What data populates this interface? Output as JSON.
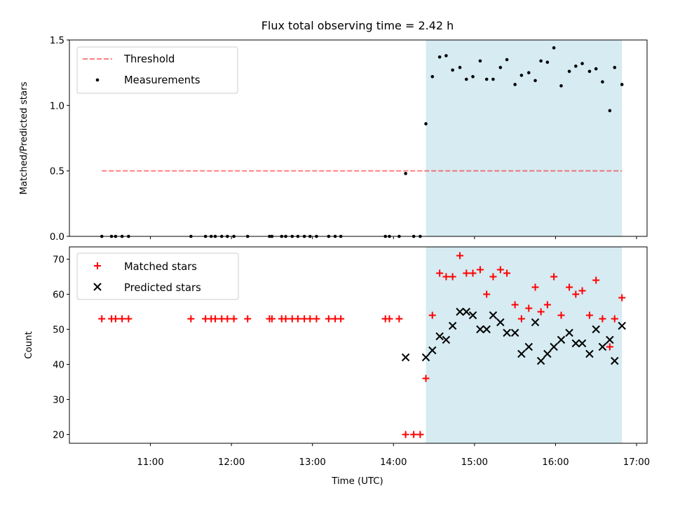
{
  "title": "Flux total observing time = 2.42 h",
  "colors": {
    "shade": "#add8e6",
    "threshold": "#ff0000",
    "matched": "#ff0000",
    "predicted": "#000000",
    "measure": "#000000"
  },
  "chart_data": [
    {
      "type": "scatter",
      "panel": "top",
      "ylabel": "Matched/Predicted stars",
      "ylim": [
        0,
        1.5
      ],
      "y_ticks": [
        "0.0",
        "0.5",
        "1.0",
        "1.5"
      ],
      "xlim_hours": [
        10.0,
        17.13
      ],
      "shaded_region_hours": [
        14.4,
        16.82
      ],
      "threshold": {
        "value": 0.5,
        "x_range_hours": [
          10.4,
          16.82
        ]
      },
      "legend": [
        {
          "label": "Threshold",
          "marker": "dashed-line"
        },
        {
          "label": "Measurements",
          "marker": "dot"
        }
      ],
      "series": [
        {
          "name": "Measurements",
          "points": [
            [
              10.4,
              0
            ],
            [
              10.52,
              0
            ],
            [
              10.57,
              0
            ],
            [
              10.65,
              0
            ],
            [
              10.73,
              0
            ],
            [
              11.5,
              0
            ],
            [
              11.68,
              0
            ],
            [
              11.75,
              0
            ],
            [
              11.8,
              0
            ],
            [
              11.88,
              0
            ],
            [
              11.95,
              0
            ],
            [
              12.03,
              0
            ],
            [
              12.2,
              0
            ],
            [
              12.47,
              0
            ],
            [
              12.5,
              0
            ],
            [
              12.62,
              0
            ],
            [
              12.67,
              0
            ],
            [
              12.75,
              0
            ],
            [
              12.82,
              0
            ],
            [
              12.9,
              0
            ],
            [
              12.97,
              0
            ],
            [
              13.05,
              0
            ],
            [
              13.2,
              0
            ],
            [
              13.28,
              0
            ],
            [
              13.35,
              0
            ],
            [
              13.9,
              0
            ],
            [
              13.95,
              0
            ],
            [
              14.07,
              0
            ],
            [
              14.15,
              0.48
            ],
            [
              14.25,
              0
            ],
            [
              14.33,
              0
            ],
            [
              14.4,
              0.86
            ],
            [
              14.48,
              1.22
            ],
            [
              14.57,
              1.37
            ],
            [
              14.65,
              1.38
            ],
            [
              14.73,
              1.27
            ],
            [
              14.82,
              1.29
            ],
            [
              14.9,
              1.2
            ],
            [
              14.98,
              1.22
            ],
            [
              15.07,
              1.34
            ],
            [
              15.15,
              1.2
            ],
            [
              15.23,
              1.2
            ],
            [
              15.32,
              1.29
            ],
            [
              15.4,
              1.35
            ],
            [
              15.5,
              1.16
            ],
            [
              15.58,
              1.23
            ],
            [
              15.67,
              1.25
            ],
            [
              15.75,
              1.19
            ],
            [
              15.82,
              1.34
            ],
            [
              15.9,
              1.33
            ],
            [
              15.98,
              1.44
            ],
            [
              16.07,
              1.15
            ],
            [
              16.17,
              1.26
            ],
            [
              16.25,
              1.3
            ],
            [
              16.33,
              1.32
            ],
            [
              16.42,
              1.26
            ],
            [
              16.5,
              1.28
            ],
            [
              16.58,
              1.18
            ],
            [
              16.67,
              0.96
            ],
            [
              16.73,
              1.29
            ],
            [
              16.82,
              1.16
            ]
          ]
        }
      ]
    },
    {
      "type": "scatter",
      "panel": "bottom",
      "ylabel": "Count",
      "xlabel": "Time (UTC)",
      "ylim": [
        17.5,
        73.5
      ],
      "y_ticks": [
        "20",
        "30",
        "40",
        "50",
        "60",
        "70"
      ],
      "x_ticks": [
        "11:00",
        "12:00",
        "13:00",
        "14:00",
        "15:00",
        "16:00",
        "17:00"
      ],
      "xlim_hours": [
        10.0,
        17.13
      ],
      "shaded_region_hours": [
        14.4,
        16.82
      ],
      "legend": [
        {
          "label": "Matched stars",
          "marker": "plus"
        },
        {
          "label": "Predicted stars",
          "marker": "x"
        }
      ],
      "series": [
        {
          "name": "Matched stars",
          "points": [
            [
              10.4,
              53
            ],
            [
              10.52,
              53
            ],
            [
              10.57,
              53
            ],
            [
              10.65,
              53
            ],
            [
              10.73,
              53
            ],
            [
              11.5,
              53
            ],
            [
              11.68,
              53
            ],
            [
              11.75,
              53
            ],
            [
              11.8,
              53
            ],
            [
              11.88,
              53
            ],
            [
              11.95,
              53
            ],
            [
              12.03,
              53
            ],
            [
              12.2,
              53
            ],
            [
              12.47,
              53
            ],
            [
              12.5,
              53
            ],
            [
              12.62,
              53
            ],
            [
              12.67,
              53
            ],
            [
              12.75,
              53
            ],
            [
              12.82,
              53
            ],
            [
              12.9,
              53
            ],
            [
              12.97,
              53
            ],
            [
              13.05,
              53
            ],
            [
              13.2,
              53
            ],
            [
              13.28,
              53
            ],
            [
              13.35,
              53
            ],
            [
              13.9,
              53
            ],
            [
              13.95,
              53
            ],
            [
              14.07,
              53
            ],
            [
              14.15,
              20
            ],
            [
              14.25,
              20
            ],
            [
              14.33,
              20
            ],
            [
              14.4,
              36
            ],
            [
              14.48,
              54
            ],
            [
              14.57,
              66
            ],
            [
              14.65,
              65
            ],
            [
              14.73,
              65
            ],
            [
              14.82,
              71
            ],
            [
              14.9,
              66
            ],
            [
              14.98,
              66
            ],
            [
              15.07,
              67
            ],
            [
              15.15,
              60
            ],
            [
              15.23,
              65
            ],
            [
              15.32,
              67
            ],
            [
              15.4,
              66
            ],
            [
              15.5,
              57
            ],
            [
              15.58,
              53
            ],
            [
              15.67,
              56
            ],
            [
              15.75,
              62
            ],
            [
              15.82,
              55
            ],
            [
              15.9,
              57
            ],
            [
              15.98,
              65
            ],
            [
              16.07,
              54
            ],
            [
              16.17,
              62
            ],
            [
              16.25,
              60
            ],
            [
              16.33,
              61
            ],
            [
              16.42,
              54
            ],
            [
              16.5,
              64
            ],
            [
              16.58,
              53
            ],
            [
              16.67,
              45
            ],
            [
              16.73,
              53
            ],
            [
              16.82,
              59
            ]
          ]
        },
        {
          "name": "Predicted stars",
          "points": [
            [
              14.15,
              42
            ],
            [
              14.4,
              42
            ],
            [
              14.48,
              44
            ],
            [
              14.57,
              48
            ],
            [
              14.65,
              47
            ],
            [
              14.73,
              51
            ],
            [
              14.82,
              55
            ],
            [
              14.9,
              55
            ],
            [
              14.98,
              54
            ],
            [
              15.07,
              50
            ],
            [
              15.15,
              50
            ],
            [
              15.23,
              54
            ],
            [
              15.32,
              52
            ],
            [
              15.4,
              49
            ],
            [
              15.5,
              49
            ],
            [
              15.58,
              43
            ],
            [
              15.67,
              45
            ],
            [
              15.75,
              52
            ],
            [
              15.82,
              41
            ],
            [
              15.9,
              43
            ],
            [
              15.98,
              45
            ],
            [
              16.07,
              47
            ],
            [
              16.17,
              49
            ],
            [
              16.25,
              46
            ],
            [
              16.33,
              46
            ],
            [
              16.42,
              43
            ],
            [
              16.5,
              50
            ],
            [
              16.58,
              45
            ],
            [
              16.67,
              47
            ],
            [
              16.73,
              41
            ],
            [
              16.82,
              51
            ]
          ]
        }
      ]
    }
  ]
}
